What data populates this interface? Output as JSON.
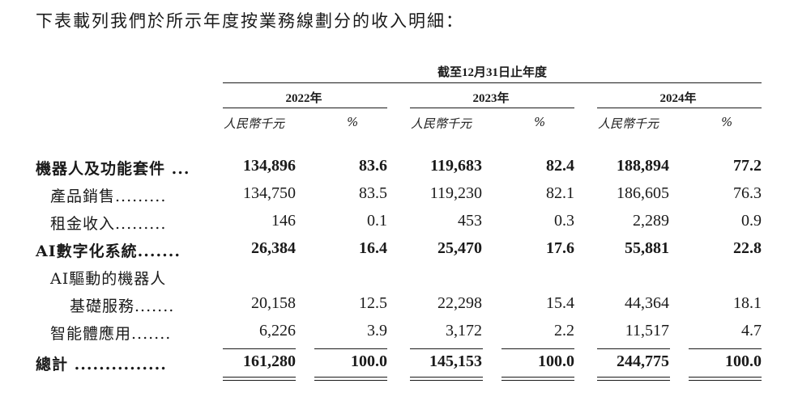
{
  "intro": "下表載列我們於所示年度按業務線劃分的收入明細：",
  "period_header": "截至12月31日止年度",
  "years": [
    "2022年",
    "2023年",
    "2024年"
  ],
  "unit_label": "人民幣千元",
  "pct_label": "%",
  "rows": [
    {
      "label": "機器人及功能套件",
      "dots": "...",
      "bold": true,
      "values": [
        "134,896",
        "83.6",
        "119,683",
        "82.4",
        "188,894",
        "77.2"
      ]
    },
    {
      "label": "產品銷售",
      "dots": ".........",
      "bold": false,
      "values": [
        "134,750",
        "83.5",
        "119,230",
        "82.1",
        "186,605",
        "76.3"
      ]
    },
    {
      "label": "租金收入",
      "dots": ".........",
      "bold": false,
      "values": [
        "146",
        "0.1",
        "453",
        "0.3",
        "2,289",
        "0.9"
      ]
    },
    {
      "label": "AI數字化系統",
      "dots": ".......",
      "bold": true,
      "values": [
        "26,384",
        "16.4",
        "25,470",
        "17.6",
        "55,881",
        "22.8"
      ]
    },
    {
      "label": "AI驅動的機器人",
      "dots": "",
      "bold": false,
      "values": [
        "",
        "",
        "",
        "",
        "",
        ""
      ]
    },
    {
      "label": "基礎服務",
      "dots": ".......",
      "bold": false,
      "values": [
        "20,158",
        "12.5",
        "22,298",
        "15.4",
        "44,364",
        "18.1"
      ]
    },
    {
      "label": "智能體應用",
      "dots": ".......",
      "bold": false,
      "values": [
        "6,226",
        "3.9",
        "3,172",
        "2.2",
        "11,517",
        "4.7"
      ]
    },
    {
      "label": "總計",
      "dots": "...............",
      "bold": true,
      "values": [
        "161,280",
        "100.0",
        "145,153",
        "100.0",
        "244,775",
        "100.0"
      ]
    }
  ]
}
